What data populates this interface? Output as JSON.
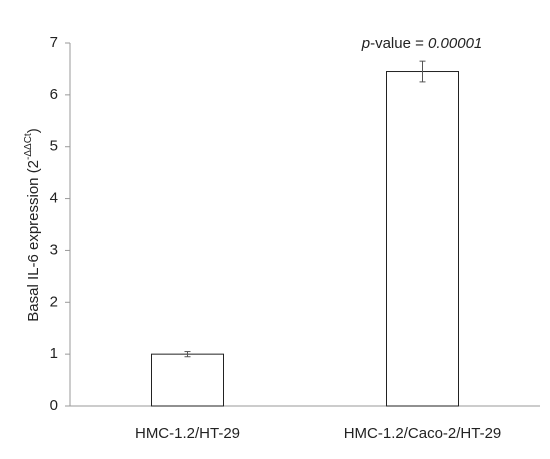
{
  "chart_data": {
    "type": "bar",
    "ylabel": {
      "main": "Basal IL-6 expression (2",
      "sup": "-ΔΔCt",
      "close": ")"
    },
    "annotation": {
      "p": "p",
      "mid": "-value = ",
      "number": "0.00001"
    },
    "categories": [
      "HMC-1.2/HT-29",
      "HMC-1.2/Caco-2/HT-29"
    ],
    "values": [
      1.0,
      6.45
    ],
    "errors": [
      0.05,
      0.2
    ],
    "color": "#ffffff",
    "ylim": [
      0,
      7
    ],
    "yticks": [
      0,
      1,
      2,
      3,
      4,
      5,
      6,
      7
    ],
    "grid": false
  }
}
